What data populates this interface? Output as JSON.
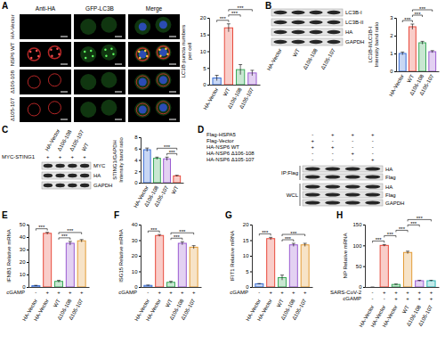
{
  "panel_labels": [
    "A",
    "B",
    "C",
    "D",
    "E",
    "F",
    "G",
    "H"
  ],
  "microscopy": {
    "columns": [
      "Anti-HA",
      "GFP-LC3B",
      "Merge"
    ],
    "rows": [
      "HA-Vector",
      "NSP6 WT",
      "Δ106-108",
      "Δ105-107"
    ]
  },
  "blots": [
    {
      "lanes": [
        "HA-Vector",
        "WT",
        "Δ106-108",
        "Δ105-107"
      ],
      "bands": [
        "LC3B-I",
        "LC3B-II",
        "HA",
        "GAPDH"
      ]
    },
    {
      "lanes": [
        "HA-Vector",
        "Δ106-108",
        "Δ105-107",
        "WT"
      ],
      "conditions": [
        {
          "label": "MYC-STING1",
          "values": [
            "+",
            "+",
            "+",
            "+"
          ]
        }
      ],
      "bands": [
        "MYC",
        "HA",
        "GAPDH"
      ]
    },
    {
      "conditions": [
        {
          "label": "Flag-HSPA5",
          "values": [
            "-",
            "+",
            "+",
            "+"
          ]
        },
        {
          "label": "Flag-Vector",
          "values": [
            "+",
            "-",
            "-",
            "-"
          ]
        },
        {
          "label": "HA-NSP6 WT",
          "values": [
            "+",
            "+",
            "-",
            "-"
          ]
        },
        {
          "label": "HA-NSP6 Δ106-108",
          "values": [
            "-",
            "-",
            "+",
            "-"
          ]
        },
        {
          "label": "HA-NSP6 Δ105-107",
          "values": [
            "-",
            "-",
            "-",
            "+"
          ]
        }
      ],
      "groups": [
        {
          "label": "IP:Flag",
          "bands": [
            "HA",
            "Flag"
          ]
        },
        {
          "label": "WCL",
          "bands": [
            "HA",
            "Flag",
            "GAPDH"
          ]
        }
      ]
    }
  ],
  "chart_data": [
    {
      "type": "bar",
      "ylabel": [
        "LC3B puncta numbers",
        "per cell"
      ],
      "categories": [
        "HA-Vector",
        "WT",
        "Δ106-108",
        "Δ105-107"
      ],
      "values": [
        2,
        17,
        4.5,
        3.5
      ],
      "errors": [
        0.8,
        1.2,
        1.5,
        0.8
      ],
      "colors": [
        "#3b6fd6",
        "#e84a3c",
        "#3daa5c",
        "#9a5bd1"
      ],
      "ylim": [
        0,
        20
      ],
      "yticks": [
        0,
        5,
        10,
        15,
        20
      ],
      "annotations": [
        {
          "x1": 0,
          "x2": 1,
          "text": "***"
        },
        {
          "x1": 1,
          "x2": 2,
          "text": "***"
        },
        {
          "x1": 1,
          "x2": 3,
          "text": "***"
        }
      ]
    },
    {
      "type": "bar",
      "ylabel": [
        "LC3B-II/LC3B-I",
        "Intensity band ratio"
      ],
      "categories": [
        "HA-Vector",
        "WT",
        "Δ106-108",
        "Δ105-107"
      ],
      "values": [
        1.0,
        2.5,
        1.6,
        1.1
      ],
      "errors": [
        0.08,
        0.15,
        0.08,
        0.06
      ],
      "colors": [
        "#3b6fd6",
        "#e84a3c",
        "#3daa5c",
        "#9a5bd1"
      ],
      "ylim": [
        0,
        3
      ],
      "yticks": [
        0,
        1,
        2,
        3
      ],
      "annotations": [
        {
          "x1": 0,
          "x2": 1,
          "text": "***"
        },
        {
          "x1": 1,
          "x2": 2,
          "text": "***"
        },
        {
          "x1": 1,
          "x2": 3,
          "text": "***"
        }
      ]
    },
    {
      "type": "bar",
      "ylabel": [
        "STING1/GAPDH",
        "Intensity band ratio"
      ],
      "categories": [
        "HA-Vector",
        "Δ106-108",
        "Δ105-107",
        "WT"
      ],
      "values": [
        5.8,
        4.3,
        4.2,
        1.2
      ],
      "errors": [
        0.3,
        0.2,
        0.3,
        0.1
      ],
      "colors": [
        "#3b6fd6",
        "#3daa5c",
        "#9a5bd1",
        "#e84a3c"
      ],
      "ylim": [
        0,
        8
      ],
      "yticks": [
        0,
        2,
        4,
        6,
        8
      ],
      "annotations": [
        {
          "x1": 2,
          "x2": 3,
          "text": "***"
        },
        {
          "x1": 1,
          "x2": 3,
          "text": "***"
        }
      ]
    },
    {
      "type": "bar",
      "ylabel": "IFNB1 Relative mRNA",
      "categories": [
        "HA-Vector",
        "HA-Vector",
        "WT",
        "Δ106-108",
        "Δ105-107"
      ],
      "conditions": [
        {
          "label": "cGAMP",
          "values": [
            "-",
            "+",
            "+",
            "+",
            "+"
          ]
        }
      ],
      "values": [
        1,
        43,
        4.5,
        35,
        37
      ],
      "errors": [
        0.3,
        0.8,
        0.8,
        1.5,
        1
      ],
      "colors": [
        "#3b6fd6",
        "#e84a3c",
        "#3daa5c",
        "#9a5bd1",
        "#e39b35"
      ],
      "ylim": [
        0,
        50
      ],
      "yticks": [
        0,
        10,
        20,
        30,
        40,
        50
      ],
      "annotations": [
        {
          "x1": 0,
          "x2": 1,
          "text": "***"
        },
        {
          "x1": 2,
          "x2": 3,
          "text": "***"
        },
        {
          "x1": 2,
          "x2": 4,
          "text": "***"
        }
      ]
    },
    {
      "type": "bar",
      "ylabel": "ISG15 Relative mRNA",
      "categories": [
        "HA-Vector",
        "HA-Vector",
        "WT",
        "Δ106-108",
        "Δ105-107"
      ],
      "conditions": [
        {
          "label": "cGAMP",
          "values": [
            "-",
            "+",
            "+",
            "+",
            "+"
          ]
        }
      ],
      "values": [
        1,
        33,
        3,
        28,
        25.5
      ],
      "errors": [
        0.2,
        0.6,
        0.6,
        1,
        1
      ],
      "colors": [
        "#3b6fd6",
        "#e84a3c",
        "#3daa5c",
        "#9a5bd1",
        "#e39b35"
      ],
      "ylim": [
        0,
        40
      ],
      "yticks": [
        0,
        10,
        20,
        30,
        40
      ],
      "annotations": [
        {
          "x1": 0,
          "x2": 1,
          "text": "***"
        },
        {
          "x1": 2,
          "x2": 3,
          "text": "***"
        },
        {
          "x1": 2,
          "x2": 4,
          "text": "***"
        }
      ]
    },
    {
      "type": "bar",
      "ylabel": "IFIT1 Relative mRNA",
      "categories": [
        "HA-Vector",
        "HA-Vector",
        "WT",
        "Δ106-108",
        "Δ105-107"
      ],
      "conditions": [
        {
          "label": "cGAMP",
          "values": [
            "-",
            "+",
            "+",
            "+",
            "+"
          ]
        }
      ],
      "values": [
        1,
        15.5,
        3,
        13.5,
        13.5
      ],
      "errors": [
        0.1,
        0.4,
        0.8,
        0.5,
        0.5
      ],
      "colors": [
        "#3b6fd6",
        "#e84a3c",
        "#3daa5c",
        "#9a5bd1",
        "#e39b35"
      ],
      "ylim": [
        0,
        20
      ],
      "yticks": [
        0,
        5,
        10,
        15,
        20
      ],
      "annotations": [
        {
          "x1": 0,
          "x2": 1,
          "text": "***"
        },
        {
          "x1": 2,
          "x2": 3,
          "text": "***"
        },
        {
          "x1": 2,
          "x2": 4,
          "text": "***"
        }
      ]
    },
    {
      "type": "bar",
      "ylabel": "NP Relative mRNA",
      "categories": [
        "HA-Vector",
        "HA-Vector",
        "HA-Vector",
        "WT",
        "Δ106-108",
        "Δ105-107"
      ],
      "conditions": [
        {
          "label": "SARS-CoV-2",
          "values": [
            "-",
            "+",
            "+",
            "+",
            "+",
            "+"
          ]
        },
        {
          "label": "cGAMP",
          "values": [
            "-",
            "-",
            "+",
            "+",
            "+",
            "+"
          ]
        }
      ],
      "values": [
        0,
        100,
        6,
        83,
        15,
        15
      ],
      "errors": [
        0,
        2,
        1,
        3,
        1,
        1
      ],
      "colors": [
        "#3b6fd6",
        "#e84a3c",
        "#3daa5c",
        "#e39b35",
        "#9a5bd1",
        "#2bb5b5"
      ],
      "ylim": [
        0,
        150
      ],
      "yticks": [
        0,
        50,
        100,
        150
      ],
      "annotations": [
        {
          "x1": 0,
          "x2": 1,
          "text": "***"
        },
        {
          "x1": 1,
          "x2": 2,
          "text": "***"
        },
        {
          "x1": 2,
          "x2": 3,
          "text": "***"
        },
        {
          "x1": 3,
          "x2": 4,
          "text": "***"
        },
        {
          "x1": 3,
          "x2": 5,
          "text": "***"
        }
      ]
    }
  ]
}
